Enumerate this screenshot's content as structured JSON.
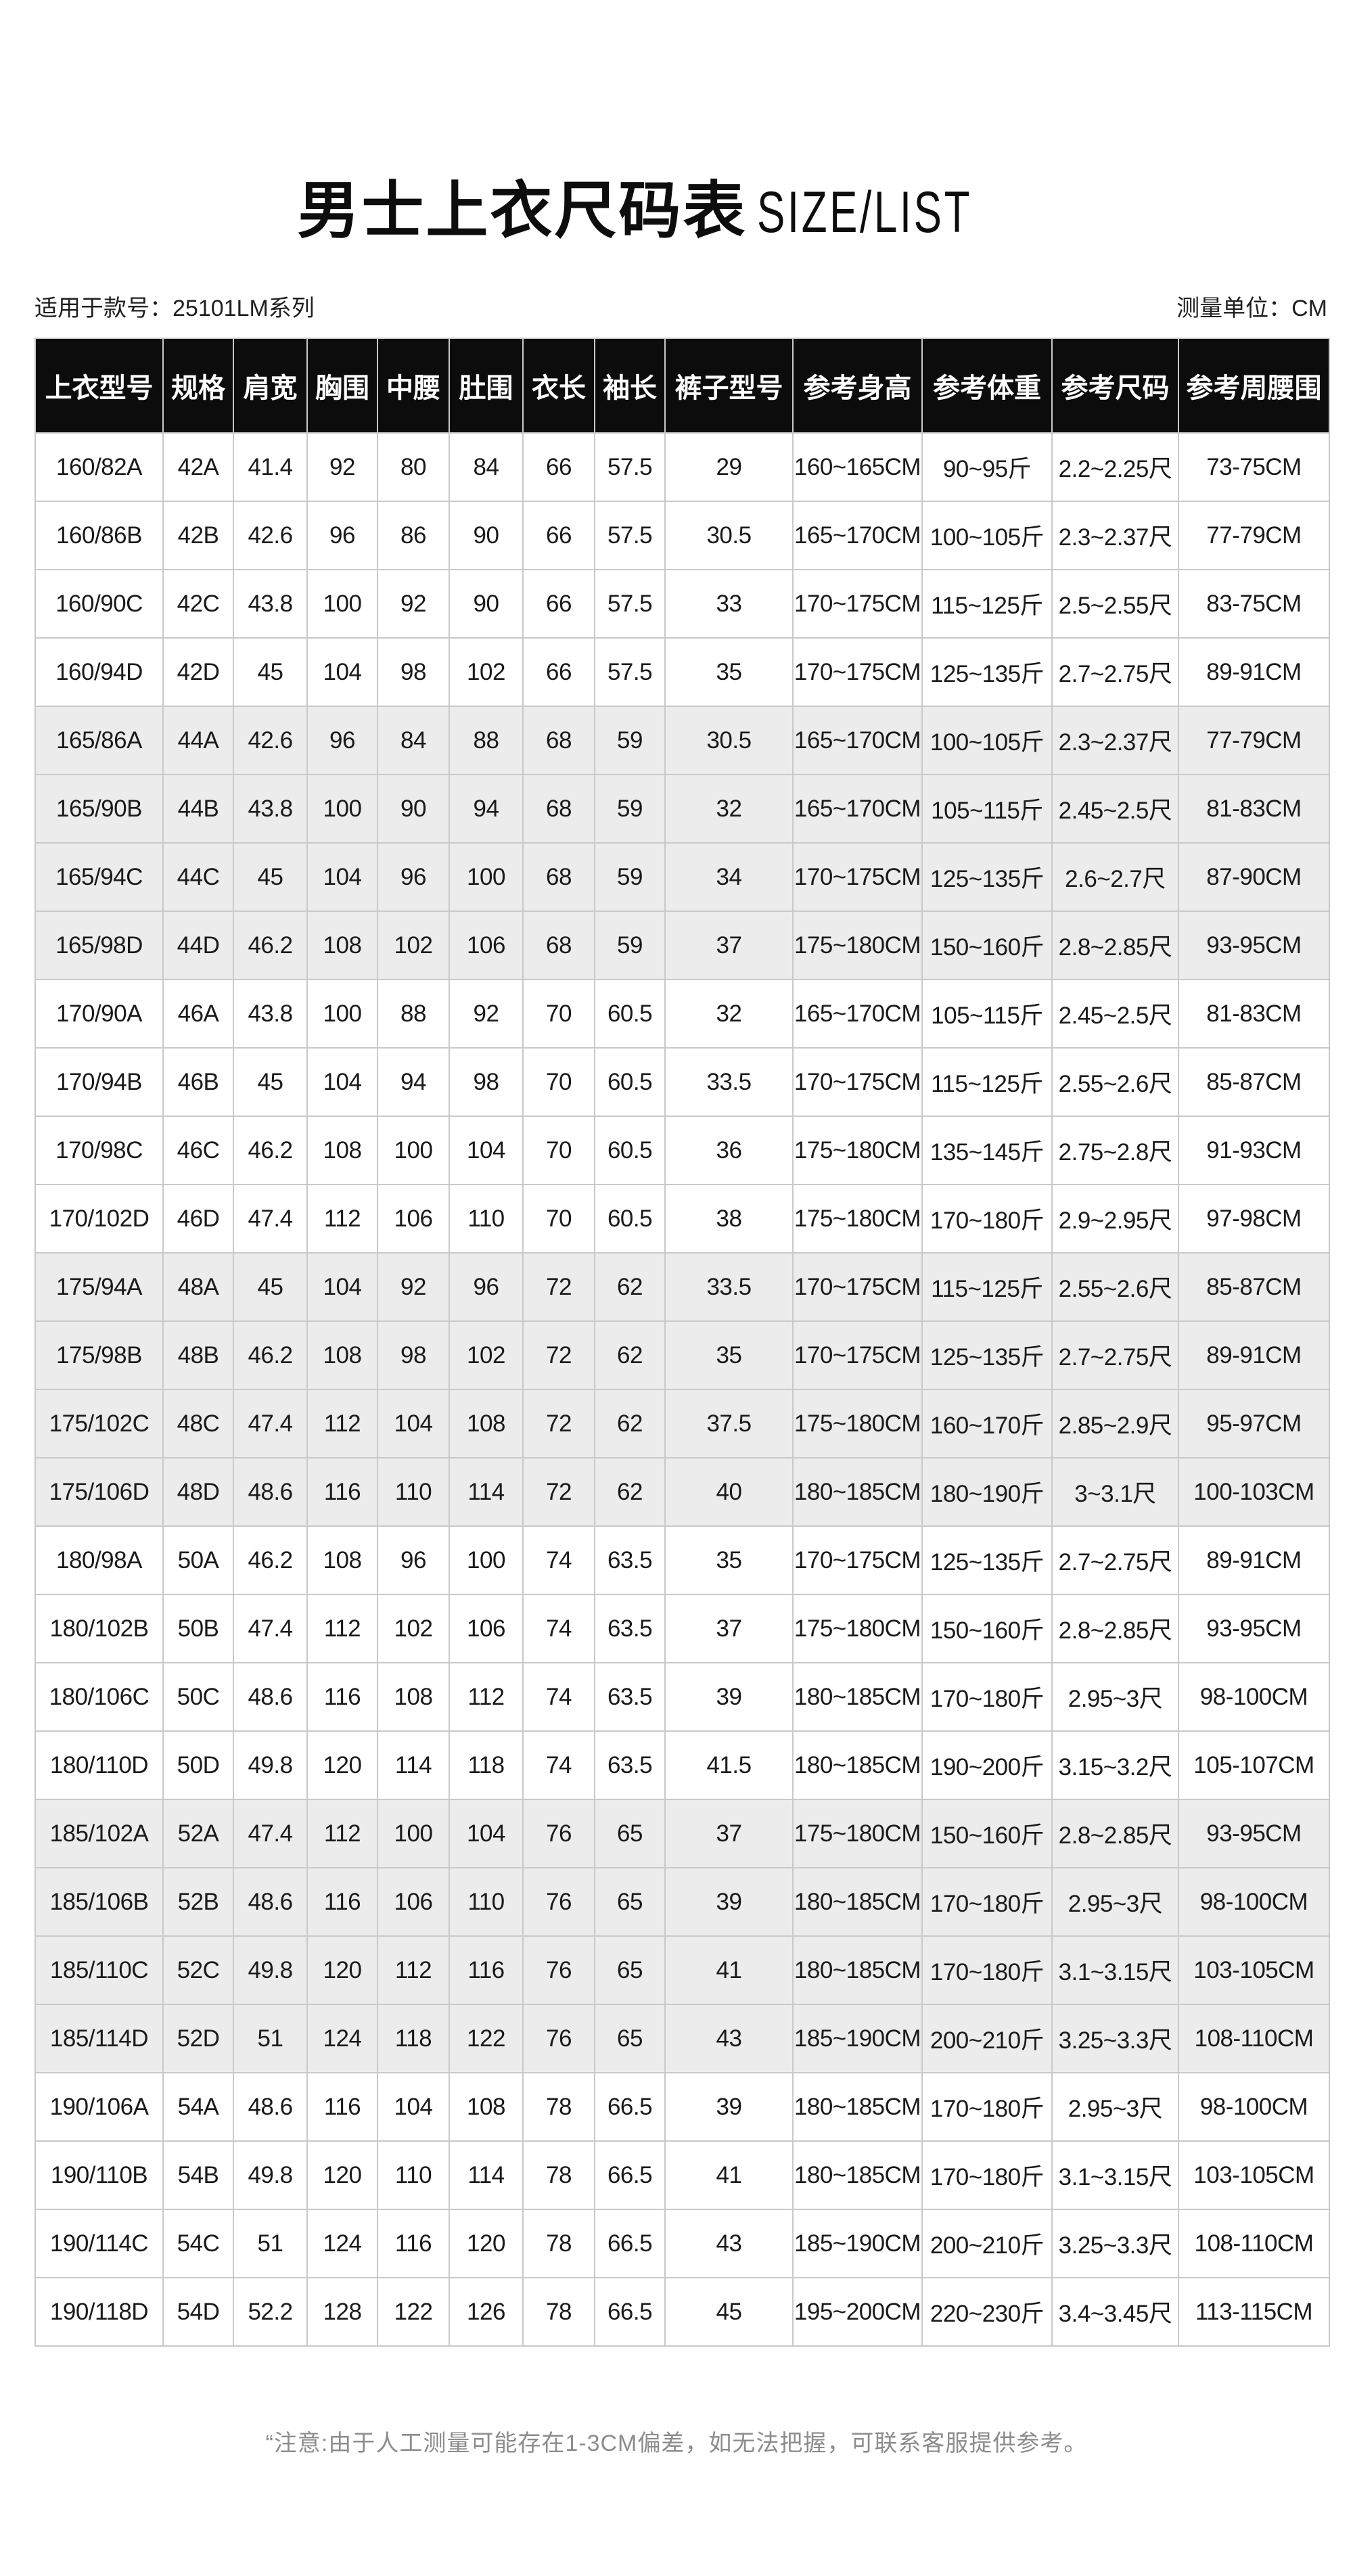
{
  "title": {
    "cn": "男士上衣尺码表",
    "en": "SIZE/LIST"
  },
  "subheader": {
    "applicable_model": "适用于款号：25101LM系列",
    "measure_unit": "测量单位：CM"
  },
  "table": {
    "headers": [
      "上衣型号",
      "规格",
      "肩宽",
      "胸围",
      "中腰",
      "肚围",
      "衣长",
      "袖长",
      "裤子型号",
      "参考身高",
      "参考体重",
      "参考尺码",
      "参考周腰围"
    ],
    "rows": [
      [
        "160/82A",
        "42A",
        "41.4",
        "92",
        "80",
        "84",
        "66",
        "57.5",
        "29",
        "160~165CM",
        "90~95斤",
        "2.2~2.25尺",
        "73-75CM"
      ],
      [
        "160/86B",
        "42B",
        "42.6",
        "96",
        "86",
        "90",
        "66",
        "57.5",
        "30.5",
        "165~170CM",
        "100~105斤",
        "2.3~2.37尺",
        "77-79CM"
      ],
      [
        "160/90C",
        "42C",
        "43.8",
        "100",
        "92",
        "90",
        "66",
        "57.5",
        "33",
        "170~175CM",
        "115~125斤",
        "2.5~2.55尺",
        "83-75CM"
      ],
      [
        "160/94D",
        "42D",
        "45",
        "104",
        "98",
        "102",
        "66",
        "57.5",
        "35",
        "170~175CM",
        "125~135斤",
        "2.7~2.75尺",
        "89-91CM"
      ],
      [
        "165/86A",
        "44A",
        "42.6",
        "96",
        "84",
        "88",
        "68",
        "59",
        "30.5",
        "165~170CM",
        "100~105斤",
        "2.3~2.37尺",
        "77-79CM"
      ],
      [
        "165/90B",
        "44B",
        "43.8",
        "100",
        "90",
        "94",
        "68",
        "59",
        "32",
        "165~170CM",
        "105~115斤",
        "2.45~2.5尺",
        "81-83CM"
      ],
      [
        "165/94C",
        "44C",
        "45",
        "104",
        "96",
        "100",
        "68",
        "59",
        "34",
        "170~175CM",
        "125~135斤",
        "2.6~2.7尺",
        "87-90CM"
      ],
      [
        "165/98D",
        "44D",
        "46.2",
        "108",
        "102",
        "106",
        "68",
        "59",
        "37",
        "175~180CM",
        "150~160斤",
        "2.8~2.85尺",
        "93-95CM"
      ],
      [
        "170/90A",
        "46A",
        "43.8",
        "100",
        "88",
        "92",
        "70",
        "60.5",
        "32",
        "165~170CM",
        "105~115斤",
        "2.45~2.5尺",
        "81-83CM"
      ],
      [
        "170/94B",
        "46B",
        "45",
        "104",
        "94",
        "98",
        "70",
        "60.5",
        "33.5",
        "170~175CM",
        "115~125斤",
        "2.55~2.6尺",
        "85-87CM"
      ],
      [
        "170/98C",
        "46C",
        "46.2",
        "108",
        "100",
        "104",
        "70",
        "60.5",
        "36",
        "175~180CM",
        "135~145斤",
        "2.75~2.8尺",
        "91-93CM"
      ],
      [
        "170/102D",
        "46D",
        "47.4",
        "112",
        "106",
        "110",
        "70",
        "60.5",
        "38",
        "175~180CM",
        "170~180斤",
        "2.9~2.95尺",
        "97-98CM"
      ],
      [
        "175/94A",
        "48A",
        "45",
        "104",
        "92",
        "96",
        "72",
        "62",
        "33.5",
        "170~175CM",
        "115~125斤",
        "2.55~2.6尺",
        "85-87CM"
      ],
      [
        "175/98B",
        "48B",
        "46.2",
        "108",
        "98",
        "102",
        "72",
        "62",
        "35",
        "170~175CM",
        "125~135斤",
        "2.7~2.75尺",
        "89-91CM"
      ],
      [
        "175/102C",
        "48C",
        "47.4",
        "112",
        "104",
        "108",
        "72",
        "62",
        "37.5",
        "175~180CM",
        "160~170斤",
        "2.85~2.9尺",
        "95-97CM"
      ],
      [
        "175/106D",
        "48D",
        "48.6",
        "116",
        "110",
        "114",
        "72",
        "62",
        "40",
        "180~185CM",
        "180~190斤",
        "3~3.1尺",
        "100-103CM"
      ],
      [
        "180/98A",
        "50A",
        "46.2",
        "108",
        "96",
        "100",
        "74",
        "63.5",
        "35",
        "170~175CM",
        "125~135斤",
        "2.7~2.75尺",
        "89-91CM"
      ],
      [
        "180/102B",
        "50B",
        "47.4",
        "112",
        "102",
        "106",
        "74",
        "63.5",
        "37",
        "175~180CM",
        "150~160斤",
        "2.8~2.85尺",
        "93-95CM"
      ],
      [
        "180/106C",
        "50C",
        "48.6",
        "116",
        "108",
        "112",
        "74",
        "63.5",
        "39",
        "180~185CM",
        "170~180斤",
        "2.95~3尺",
        "98-100CM"
      ],
      [
        "180/110D",
        "50D",
        "49.8",
        "120",
        "114",
        "118",
        "74",
        "63.5",
        "41.5",
        "180~185CM",
        "190~200斤",
        "3.15~3.2尺",
        "105-107CM"
      ],
      [
        "185/102A",
        "52A",
        "47.4",
        "112",
        "100",
        "104",
        "76",
        "65",
        "37",
        "175~180CM",
        "150~160斤",
        "2.8~2.85尺",
        "93-95CM"
      ],
      [
        "185/106B",
        "52B",
        "48.6",
        "116",
        "106",
        "110",
        "76",
        "65",
        "39",
        "180~185CM",
        "170~180斤",
        "2.95~3尺",
        "98-100CM"
      ],
      [
        "185/110C",
        "52C",
        "49.8",
        "120",
        "112",
        "116",
        "76",
        "65",
        "41",
        "180~185CM",
        "170~180斤",
        "3.1~3.15尺",
        "103-105CM"
      ],
      [
        "185/114D",
        "52D",
        "51",
        "124",
        "118",
        "122",
        "76",
        "65",
        "43",
        "185~190CM",
        "200~210斤",
        "3.25~3.3尺",
        "108-110CM"
      ],
      [
        "190/106A",
        "54A",
        "48.6",
        "116",
        "104",
        "108",
        "78",
        "66.5",
        "39",
        "180~185CM",
        "170~180斤",
        "2.95~3尺",
        "98-100CM"
      ],
      [
        "190/110B",
        "54B",
        "49.8",
        "120",
        "110",
        "114",
        "78",
        "66.5",
        "41",
        "180~185CM",
        "170~180斤",
        "3.1~3.15尺",
        "103-105CM"
      ],
      [
        "190/114C",
        "54C",
        "51",
        "124",
        "116",
        "120",
        "78",
        "66.5",
        "43",
        "185~190CM",
        "200~210斤",
        "3.25~3.3尺",
        "108-110CM"
      ],
      [
        "190/118D",
        "54D",
        "52.2",
        "128",
        "122",
        "126",
        "78",
        "66.5",
        "45",
        "195~200CM",
        "220~230斤",
        "3.4~3.45尺",
        "113-115CM"
      ]
    ]
  },
  "footer": {
    "note": "“注意:由于人工测量可能存在1-3CM偏差，如无法把握，可联系客服提供参考。"
  },
  "colors": {
    "header_bg": "#0c0c0c",
    "header_text": "#ffffff",
    "zebra_row_bg": "#ececec",
    "border": "#c9c9c9",
    "note_text": "#8c8c8c"
  }
}
